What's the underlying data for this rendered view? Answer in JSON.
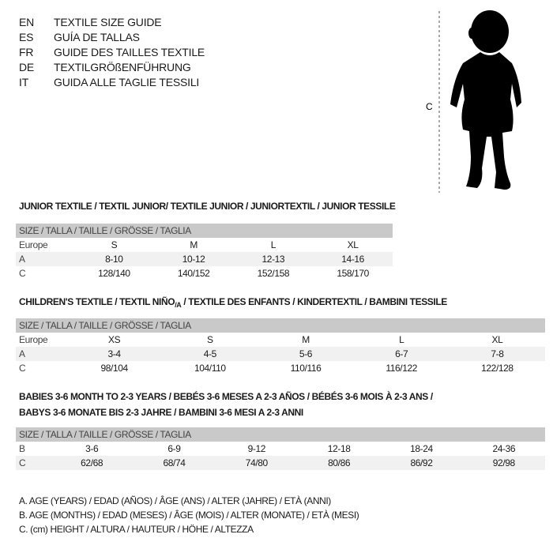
{
  "languages": [
    {
      "code": "EN",
      "text": "TEXTILE SIZE GUIDE"
    },
    {
      "code": "ES",
      "text": "GUÍA DE TALLAS"
    },
    {
      "code": "FR",
      "text": "GUIDE DES TAILLES TEXTILE"
    },
    {
      "code": "DE",
      "text": "TEXTILGRÖßENFÜHRUNG"
    },
    {
      "code": "IT",
      "text": "GUIDA ALLE TAGLIE TESSILI"
    }
  ],
  "figure": {
    "measure_label": "C"
  },
  "junior": {
    "title": "JUNIOR TEXTILE / TEXTIL JUNIOR/ TEXTILE JUNIOR / JUNIORTEXTIL / JUNIOR TESSILE",
    "header": "SIZE / TALLA / TAILLE / GRÖSSE / TAGLIA",
    "rows": [
      {
        "label": "Europe",
        "cells": [
          "S",
          "M",
          "L",
          "XL"
        ]
      },
      {
        "label": "A",
        "cells": [
          "8-10",
          "10-12",
          "12-13",
          "14-16"
        ]
      },
      {
        "label": "C",
        "cells": [
          "128/140",
          "140/152",
          "152/158",
          "158/170"
        ]
      }
    ]
  },
  "children": {
    "title_a": "CHILDREN'S TEXTILE / TEXTIL NIÑO",
    "title_sub": "/A",
    "title_b": " / TEXTILE DES ENFANTS / KINDERTEXTIL / BAMBINI TESSILE",
    "header": "SIZE / TALLA / TAILLE / GRÖSSE / TAGLIA",
    "rows": [
      {
        "label": "Europe",
        "cells": [
          "XS",
          "S",
          "M",
          "L",
          "XL"
        ]
      },
      {
        "label": "A",
        "cells": [
          "3-4",
          "4-5",
          "5-6",
          "6-7",
          "7-8"
        ]
      },
      {
        "label": "C",
        "cells": [
          "98/104",
          "104/110",
          "110/116",
          "116/122",
          "122/128"
        ]
      }
    ]
  },
  "babies": {
    "title_line1": "BABIES 3-6 MONTH TO 2-3 YEARS / BEBÉS 3-6 MESES A 2-3 AÑOS / BÉBÉS 3-6 MOIS À 2-3 ANS /",
    "title_line2": "BABYS 3-6 MONATE BIS 2-3 JAHRE / BAMBINI 3-6 MESI A 2-3 ANNI",
    "header": "SIZE / TALLA / TAILLE / GRÖSSE / TAGLIA",
    "rows": [
      {
        "label": "B",
        "cells": [
          "3-6",
          "6-9",
          "9-12",
          "12-18",
          "18-24",
          "24-36"
        ]
      },
      {
        "label": "C",
        "cells": [
          "62/68",
          "68/74",
          "74/80",
          "80/86",
          "86/92",
          "92/98"
        ]
      }
    ]
  },
  "legend": [
    "A. AGE (YEARS) / EDAD (AÑOS) / ÂGE (ANS) / ALTER (JAHRE) / ETÀ (ANNI)",
    "B. AGE (MONTHS) / EDAD (MESES) / ÂGE (MOIS) / ALTER (MONATE) / ETÀ (MESI)",
    "C. (cm) HEIGHT / ALTURA / HAUTEUR / HÖHE / ALTEZZA"
  ]
}
